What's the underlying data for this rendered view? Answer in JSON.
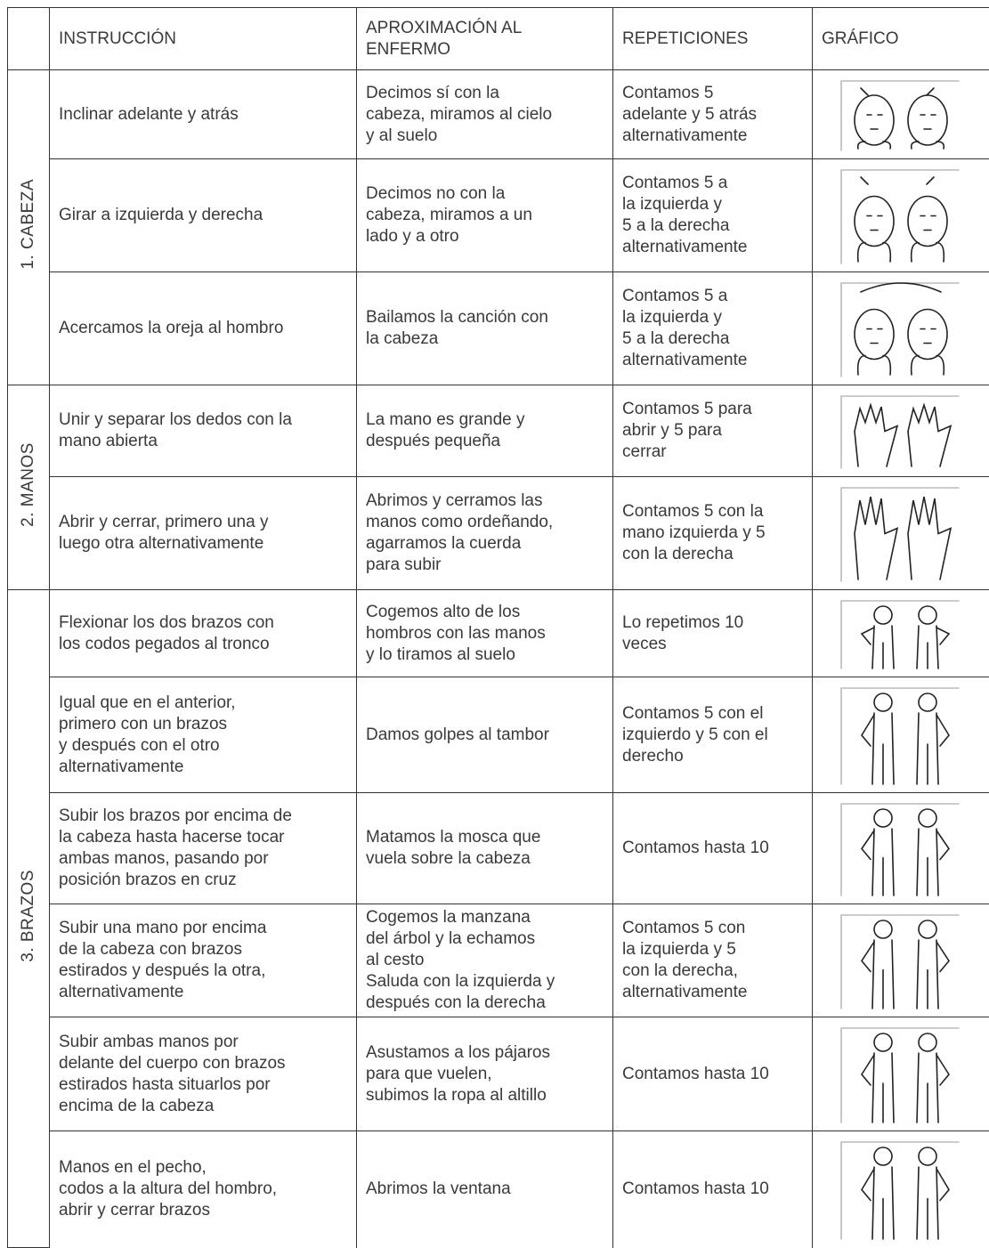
{
  "header": [
    "INSTRUCCIÓN",
    "APROXIMACIÓN AL\nENFERMO",
    "REPETICIONES",
    "GRÁFICO"
  ],
  "sections": [
    {
      "label": "1. CABEZA",
      "rows": [
        {
          "instruccion": "Inclinar adelante y atrás",
          "aproximacion": "Decimos sí con la\ncabeza, miramos al cielo\ny al suelo",
          "repeticiones": "Contamos 5\nadelante y 5 atrás\nalternativamente"
        },
        {
          "instruccion": "Girar a izquierda y derecha",
          "aproximacion": "Decimos no con la\ncabeza, miramos a un\nlado y a otro",
          "repeticiones": "Contamos 5 a\nla izquierda y\n5 a la derecha\nalternativamente"
        },
        {
          "instruccion": "Acercamos la oreja al hombro",
          "aproximacion": "Bailamos la canción con\nla cabeza",
          "repeticiones": "Contamos 5 a\nla izquierda y\n5 a la derecha\nalternativamente"
        }
      ]
    },
    {
      "label": "2. MANOS",
      "rows": [
        {
          "instruccion": "Unir y separar los dedos con la\nmano abierta",
          "aproximacion": "La mano es grande y\ndespués pequeña",
          "repeticiones": "Contamos 5 para\nabrir y 5 para\ncerrar"
        },
        {
          "instruccion": "Abrir y cerrar, primero una y\nluego otra alternativamente",
          "aproximacion": "Abrimos y cerramos las\nmanos como ordeñando,\nagarramos la cuerda\npara subir",
          "repeticiones": "Contamos 5 con la\nmano izquierda y 5\ncon la derecha"
        }
      ]
    },
    {
      "label": "3. BRAZOS",
      "rows": [
        {
          "instruccion": "Flexionar los dos brazos con\nlos codos pegados al tronco",
          "aproximacion": "Cogemos alto de los\nhombros con las manos\ny lo tiramos al suelo",
          "repeticiones": "Lo repetimos 10\nveces"
        },
        {
          "instruccion": "Igual que en el anterior,\nprimero con un brazos\ny después con el otro\nalternativamente",
          "aproximacion": "Damos golpes al tambor",
          "repeticiones": "Contamos 5 con el\nizquierdo y 5 con el\nderecho"
        },
        {
          "instruccion": "Subir los brazos por encima de\nla cabeza hasta hacerse tocar\nambas manos, pasando por\nposición brazos en cruz",
          "aproximacion": "Matamos la mosca que\nvuela sobre la cabeza",
          "repeticiones": "Contamos hasta 10"
        },
        {
          "instruccion": "Subir una mano por encima\nde la cabeza con brazos\nestirados y después la otra,\nalternativamente",
          "aproximacion": "Cogemos la manzana\ndel árbol y la echamos\nal cesto\nSaluda con la izquierda y\ndespués con la derecha",
          "repeticiones": "Contamos 5 con\nla izquierda y 5\ncon la derecha,\nalternativamente"
        },
        {
          "instruccion": "Subir ambas manos por\ndelante del cuerpo con brazos\nestirados hasta situarlos por\nencima de la cabeza",
          "aproximacion": "Asustamos a los pájaros\npara que vuelen,\nsubimos la ropa al altillo",
          "repeticiones": "Contamos hasta 10"
        },
        {
          "instruccion": "Manos en el pecho,\ncodos a la altura del hombro,\nabrir y cerrar brazos",
          "aproximacion": "Abrimos la ventana",
          "repeticiones": "Contamos hasta 10"
        }
      ]
    }
  ]
}
